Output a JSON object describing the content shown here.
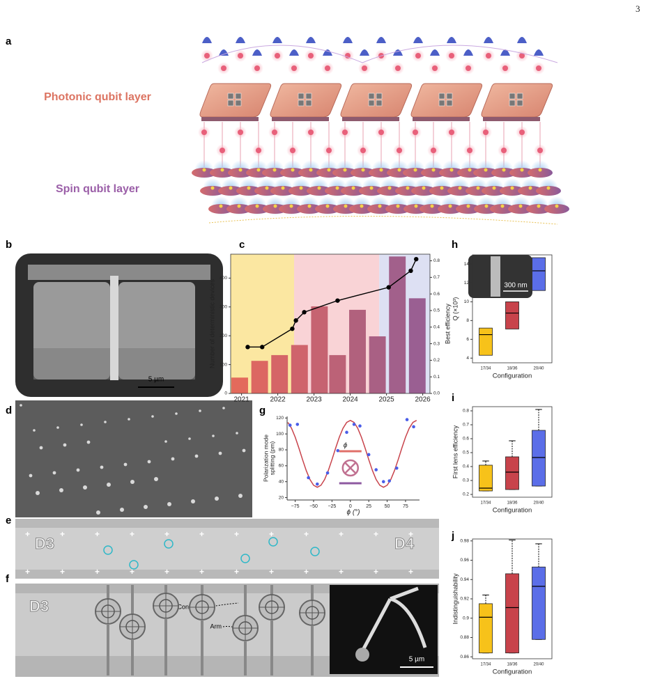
{
  "page_number": "3",
  "panels": {
    "a": {
      "label": "a",
      "photonic_layer": "Photonic qubit layer",
      "spin_layer": "Spin qubit layer"
    },
    "b": {
      "label": "b",
      "scale_bar": "5 µm"
    },
    "d": {
      "label": "d"
    },
    "e": {
      "label": "e",
      "left_device": "D3",
      "right_device": "D4"
    },
    "f": {
      "label": "f",
      "device": "D3",
      "connector": "Connector",
      "arm": "Arm",
      "scale_bar": "5 µm"
    }
  },
  "chart_data": [
    {
      "type": "bar",
      "panel": "c",
      "x": [
        2020.95,
        2021.5,
        2022.05,
        2022.6,
        2023.15,
        2023.65,
        2024.2,
        2024.75,
        2025.3,
        2025.85
      ],
      "values": [
        55,
        113,
        133,
        168,
        302,
        133,
        290,
        198,
        475,
        330
      ],
      "colors": [
        "#e36a5c",
        "#dc6762",
        "#d56567",
        "#cf646c",
        "#c66371",
        "#bc6277",
        "#b1617d",
        "#a96084",
        "#a2608b",
        "#9a5f92"
      ],
      "shading": [
        {
          "from": 2020.7,
          "to": 2022.45,
          "color": "#fbe7a1"
        },
        {
          "from": 2022.45,
          "to": 2024.8,
          "color": "#f9d3d6"
        },
        {
          "from": 2024.8,
          "to": 2026.2,
          "color": "#dde0f3"
        }
      ],
      "line": {
        "x": [
          2021.17,
          2021.57,
          2022.4,
          2022.5,
          2022.73,
          2023.65,
          2025.06,
          2025.67,
          2025.82
        ],
        "values": [
          0.28,
          0.28,
          0.39,
          0.44,
          0.49,
          0.56,
          0.64,
          0.74,
          0.81
        ],
        "axis": "y2",
        "color": "#000000"
      },
      "xlim": [
        2020.7,
        2026.2
      ],
      "xticks": [
        2021,
        2022,
        2023,
        2024,
        2025,
        2026
      ],
      "ylim": [
        0,
        483
      ],
      "yticks": [
        0,
        100,
        200,
        300,
        400
      ],
      "ylabel": "Number of deterministic devices",
      "y2lim": [
        0,
        0.84
      ],
      "y2ticks": [
        {
          "value": 0,
          "label": "0.0"
        },
        0.1,
        0.2,
        0.3,
        0.4,
        0.5,
        0.6,
        0.7,
        0.8
      ],
      "y2label": "Best efficiency"
    },
    {
      "type": "scatter",
      "panel": "g",
      "x": [
        -82,
        -72,
        -57,
        -45,
        -31,
        -17,
        -5,
        5,
        13,
        25,
        35,
        45,
        53,
        63,
        77,
        86
      ],
      "values": [
        111,
        112,
        45,
        37,
        51,
        79,
        102,
        112,
        110,
        74,
        55,
        40,
        41,
        57,
        118,
        109
      ],
      "color": "#4a5de8",
      "fit": {
        "x": [
          -85,
          -80,
          -75,
          -70,
          -65,
          -60,
          -55,
          -50,
          -45,
          -40,
          -35,
          -30,
          -25,
          -20,
          -15,
          -10,
          -5,
          0,
          5,
          10,
          15,
          20,
          25,
          30,
          35,
          40,
          45,
          50,
          55,
          60,
          65,
          70,
          75,
          80,
          85,
          90
        ],
        "values": [
          114.5,
          107.2,
          96,
          82.3,
          67.7,
          54,
          42.8,
          35.5,
          33,
          35.5,
          42.8,
          54,
          67.7,
          82.3,
          96,
          107.2,
          114.5,
          117,
          114.5,
          107.2,
          96,
          82.3,
          67.7,
          54,
          42.8,
          35.5,
          33,
          35.5,
          42.8,
          54,
          67.7,
          82.3,
          96,
          107.2,
          114.5,
          117
        ],
        "color": "#c8434b"
      },
      "xlim": [
        -86,
        94
      ],
      "xticks": [
        {
          "value": -75,
          "label": "−75"
        },
        {
          "value": -50,
          "label": "−50"
        },
        {
          "value": -25,
          "label": "−25"
        },
        0,
        25,
        50,
        75
      ],
      "ylim": [
        17,
        122
      ],
      "yticks": [
        20,
        40,
        60,
        80,
        100,
        120
      ],
      "ylabel": [
        "Polarization mode",
        "splitting (pm)"
      ],
      "xlabel": "ϕ (°)",
      "inset_label": "ϕ"
    },
    {
      "type": "box",
      "panel": "h",
      "categories": [
        "17/34",
        "18/36",
        "20/40"
      ],
      "colors": [
        "#f7c21a",
        "#c8434b",
        "#5b6ee8"
      ],
      "boxes": [
        {
          "q1": 4.3,
          "median": 6.5,
          "q3": 7.2
        },
        {
          "q1": 7.1,
          "median": 8.8,
          "q3": 10.0
        },
        {
          "q1": 11.2,
          "median": 13.3,
          "q3": 14.7
        }
      ],
      "ylim": [
        3.5,
        15
      ],
      "yticks": [
        4,
        6,
        8,
        10,
        12,
        14
      ],
      "ylabel": "Q (×10³)",
      "xlabel": "Configuration",
      "inset_scale": "300 nm"
    },
    {
      "type": "box",
      "panel": "i",
      "categories": [
        "17/34",
        "18/36",
        "20/40"
      ],
      "colors": [
        "#f7c21a",
        "#c8434b",
        "#5b6ee8"
      ],
      "boxes": [
        {
          "min": 0.225,
          "q1": 0.225,
          "median": 0.245,
          "q3": 0.41,
          "max": 0.44
        },
        {
          "min": 0.235,
          "q1": 0.235,
          "median": 0.36,
          "q3": 0.47,
          "max": 0.585
        },
        {
          "min": 0.26,
          "q1": 0.26,
          "median": 0.465,
          "q3": 0.66,
          "max": 0.81
        }
      ],
      "ylim": [
        0.18,
        0.83
      ],
      "yticks": [
        0.2,
        0.3,
        0.4,
        0.5,
        0.6,
        0.7,
        0.8
      ],
      "ylabel": "First lens efficiency",
      "xlabel": "Configuration"
    },
    {
      "type": "box",
      "panel": "j",
      "categories": [
        "17/34",
        "18/36",
        "20/40"
      ],
      "colors": [
        "#f7c21a",
        "#c8434b",
        "#5b6ee8"
      ],
      "boxes": [
        {
          "min": 0.864,
          "q1": 0.864,
          "median": 0.901,
          "q3": 0.915,
          "max": 0.924
        },
        {
          "min": 0.864,
          "q1": 0.864,
          "median": 0.911,
          "q3": 0.946,
          "max": 0.981
        },
        {
          "min": 0.878,
          "q1": 0.878,
          "median": 0.933,
          "q3": 0.953,
          "max": 0.977
        }
      ],
      "ylim": [
        0.858,
        0.982
      ],
      "yticks": [
        0.86,
        0.88,
        0.9,
        0.92,
        0.94,
        0.96,
        0.98
      ],
      "ylabel": "Indistinguishability",
      "xlabel": "Configuration"
    }
  ]
}
